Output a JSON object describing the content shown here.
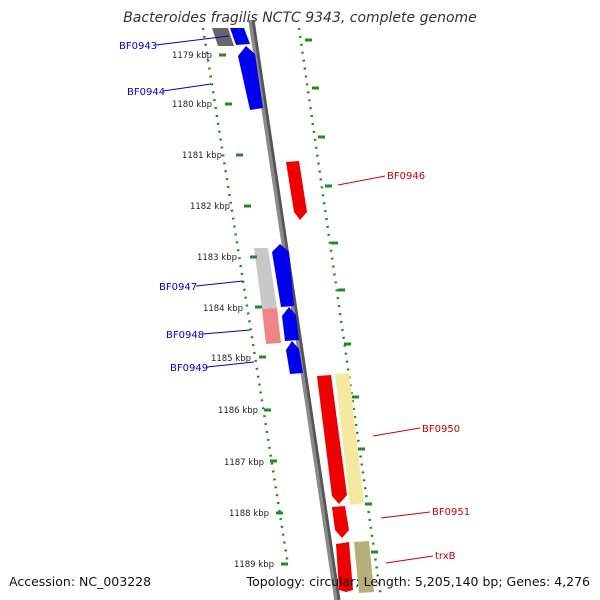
{
  "title": "Bacteroides fragilis NCTC 9343, complete genome",
  "footer": {
    "accession": "Accession: NC_003228",
    "summary": "Topology: circular; Length: 5,205,140 bp; Genes: 4,276"
  },
  "ticks": [
    "1179 kbp",
    "1180 kbp",
    "1181 kbp",
    "1182 kbp",
    "1183 kbp",
    "1184 kbp",
    "1185 kbp",
    "1186 kbp",
    "1187 kbp",
    "1188 kbp",
    "1189 kbp"
  ],
  "genes": [
    {
      "label": "BF0943",
      "color": "#0000cc"
    },
    {
      "label": "BF0944",
      "color": "#0000cc"
    },
    {
      "label": "BF0946",
      "color": "#cc0000"
    },
    {
      "label": "BF0947",
      "color": "#0000cc"
    },
    {
      "label": "BF0948",
      "color": "#0000cc"
    },
    {
      "label": "BF0949",
      "color": "#0000cc"
    },
    {
      "label": "BF0950",
      "color": "#cc0000"
    },
    {
      "label": "BF0951",
      "color": "#cc0000"
    },
    {
      "label": "trxB",
      "color": "#cc0000"
    }
  ],
  "colors": {
    "backbone": "#7f7f7f",
    "tick_dots": "#228b22",
    "forward_gene": "#0000ff",
    "reverse_gene": "#ff0000",
    "pseudo_gray": "#c0c0c0",
    "pink": "#f08080",
    "yellow": "#f5e9a0",
    "olive": "#b5b07a"
  }
}
